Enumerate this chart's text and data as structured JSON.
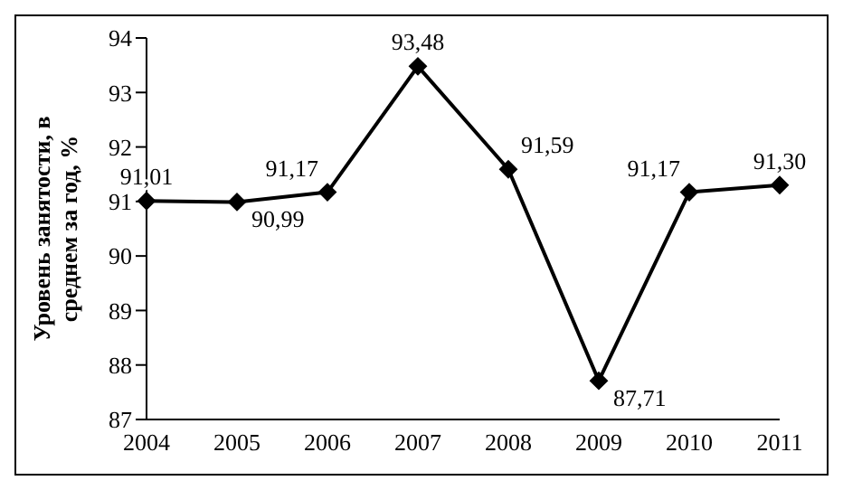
{
  "chart_data": {
    "type": "line",
    "ylabel": "Уровень занятости, в среднем за год, %",
    "categories": [
      "2004",
      "2005",
      "2006",
      "2007",
      "2008",
      "2009",
      "2010",
      "2011"
    ],
    "series": [
      {
        "color": "#000000",
        "values": [
          91.01,
          90.99,
          91.17,
          93.48,
          91.59,
          87.71,
          91.17,
          91.3
        ],
        "value_labels": [
          "91,01",
          "90,99",
          "91,17",
          "93,48",
          "91,59",
          "87,71",
          "91,17",
          "91,30"
        ]
      }
    ],
    "ylim": [
      87,
      94
    ],
    "yticks": [
      87,
      88,
      89,
      90,
      91,
      92,
      93,
      94
    ],
    "grid": false,
    "marker": "diamond",
    "line_style": "solid"
  }
}
